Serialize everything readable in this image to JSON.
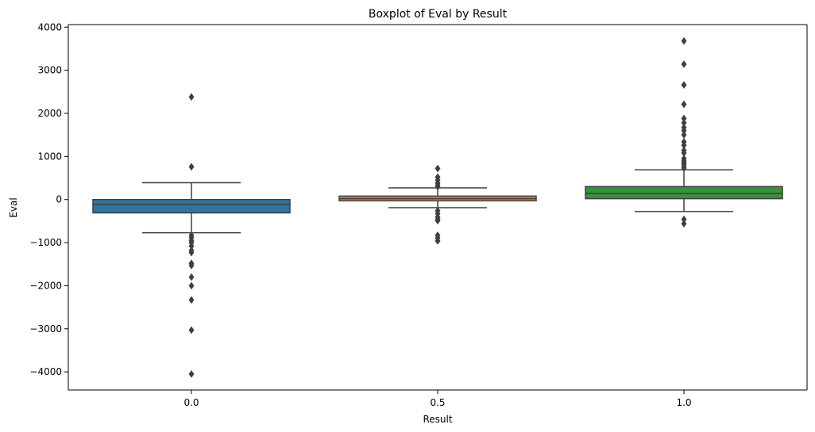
{
  "chart_data": {
    "type": "box",
    "title": "Boxplot of Eval by Result",
    "xlabel": "Result",
    "ylabel": "Eval",
    "categories": [
      "0.0",
      "0.5",
      "1.0"
    ],
    "ylim": [
      -4420,
      4060
    ],
    "yticks": [
      -4000,
      -3000,
      -2000,
      -1000,
      0,
      1000,
      2000,
      3000,
      4000
    ],
    "ytick_labels": [
      "−4000",
      "−3000",
      "−2000",
      "−1000",
      "0",
      "1000",
      "2000",
      "3000",
      "4000"
    ],
    "grid": false,
    "legend": "none",
    "colors": [
      "#3274a1",
      "#e1812c",
      "#3a923a"
    ],
    "boxes": [
      {
        "category": "0.0",
        "whisker_low": -770,
        "q1": -310,
        "median": -110,
        "q3": 0,
        "whisker_high": 390,
        "outliers": [
          2380,
          760,
          -830,
          -880,
          -950,
          -1000,
          -1080,
          -1180,
          -1230,
          -1480,
          -1530,
          -1800,
          -2000,
          -2330,
          -3030,
          -4050
        ]
      },
      {
        "category": "0.5",
        "whisker_low": -190,
        "q1": -30,
        "median": 20,
        "q3": 80,
        "whisker_high": 270,
        "outliers": [
          720,
          520,
          450,
          380,
          330,
          300,
          -260,
          -330,
          -410,
          -460,
          -490,
          -830,
          -890,
          -960
        ]
      },
      {
        "category": "1.0",
        "whisker_low": -280,
        "q1": 20,
        "median": 140,
        "q3": 300,
        "whisker_high": 690,
        "outliers": [
          3680,
          3140,
          2660,
          2210,
          1880,
          1780,
          1670,
          1600,
          1500,
          1340,
          1260,
          1140,
          1080,
          950,
          900,
          860,
          820,
          770,
          730,
          -460,
          -560
        ]
      }
    ]
  }
}
